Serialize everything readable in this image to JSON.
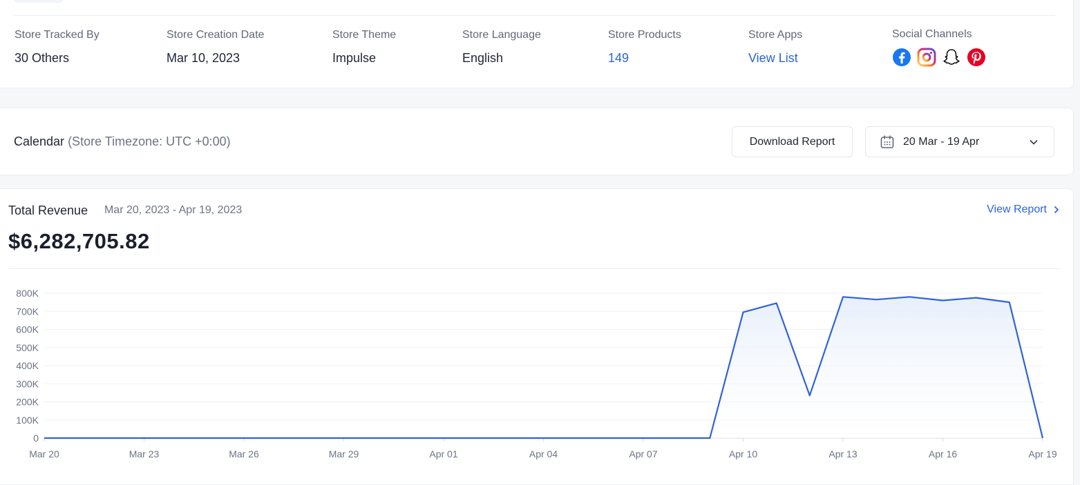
{
  "store_info": {
    "stats": [
      {
        "label": "Store Tracked By",
        "value": "30 Others",
        "link": false
      },
      {
        "label": "Store Creation Date",
        "value": "Mar 10, 2023",
        "link": false
      },
      {
        "label": "Store Theme",
        "value": "Impulse",
        "link": false
      },
      {
        "label": "Store Language",
        "value": "English",
        "link": false
      },
      {
        "label": "Store Products",
        "value": "149",
        "link": true
      },
      {
        "label": "Store Apps",
        "value": "View List",
        "link": true
      }
    ],
    "social_label": "Social Channels",
    "social_icons": [
      "facebook-icon",
      "instagram-icon",
      "snapchat-icon",
      "pinterest-icon"
    ]
  },
  "calendar": {
    "title": "Calendar",
    "timezone": "(Store Timezone: UTC +0:00)",
    "download_label": "Download Report",
    "date_range": "20 Mar - 19 Apr"
  },
  "revenue": {
    "title": "Total Revenue",
    "range": "Mar 20, 2023 - Apr 19, 2023",
    "view_report": "View Report",
    "total": "$6,282,705.82"
  },
  "colors": {
    "accent": "#2b63d9",
    "line": "#2f62d8",
    "fill": "#e6eefb"
  },
  "chart_data": {
    "type": "area",
    "x": [
      "Mar 20",
      "Mar 21",
      "Mar 22",
      "Mar 23",
      "Mar 24",
      "Mar 25",
      "Mar 26",
      "Mar 27",
      "Mar 28",
      "Mar 29",
      "Mar 30",
      "Mar 31",
      "Apr 01",
      "Apr 02",
      "Apr 03",
      "Apr 04",
      "Apr 05",
      "Apr 06",
      "Apr 07",
      "Apr 08",
      "Apr 09",
      "Apr 10",
      "Apr 11",
      "Apr 12",
      "Apr 13",
      "Apr 14",
      "Apr 15",
      "Apr 16",
      "Apr 17",
      "Apr 18",
      "Apr 19"
    ],
    "x_tick_labels": [
      "Mar 20",
      "Mar 23",
      "Mar 26",
      "Mar 29",
      "Apr 01",
      "Apr 04",
      "Apr 07",
      "Apr 10",
      "Apr 13",
      "Apr 16",
      "Apr 19"
    ],
    "y_tick_labels": [
      "0",
      "100K",
      "200K",
      "300K",
      "400K",
      "500K",
      "600K",
      "700K",
      "800K"
    ],
    "ylim": [
      0,
      800000
    ],
    "series": [
      {
        "values": [
          0,
          0,
          0,
          0,
          0,
          0,
          0,
          0,
          0,
          0,
          0,
          0,
          0,
          0,
          0,
          0,
          0,
          0,
          0,
          0,
          0,
          695000,
          745000,
          235000,
          780000,
          765000,
          780000,
          760000,
          775000,
          750000,
          0
        ]
      }
    ],
    "grid": true,
    "legend": "none"
  }
}
